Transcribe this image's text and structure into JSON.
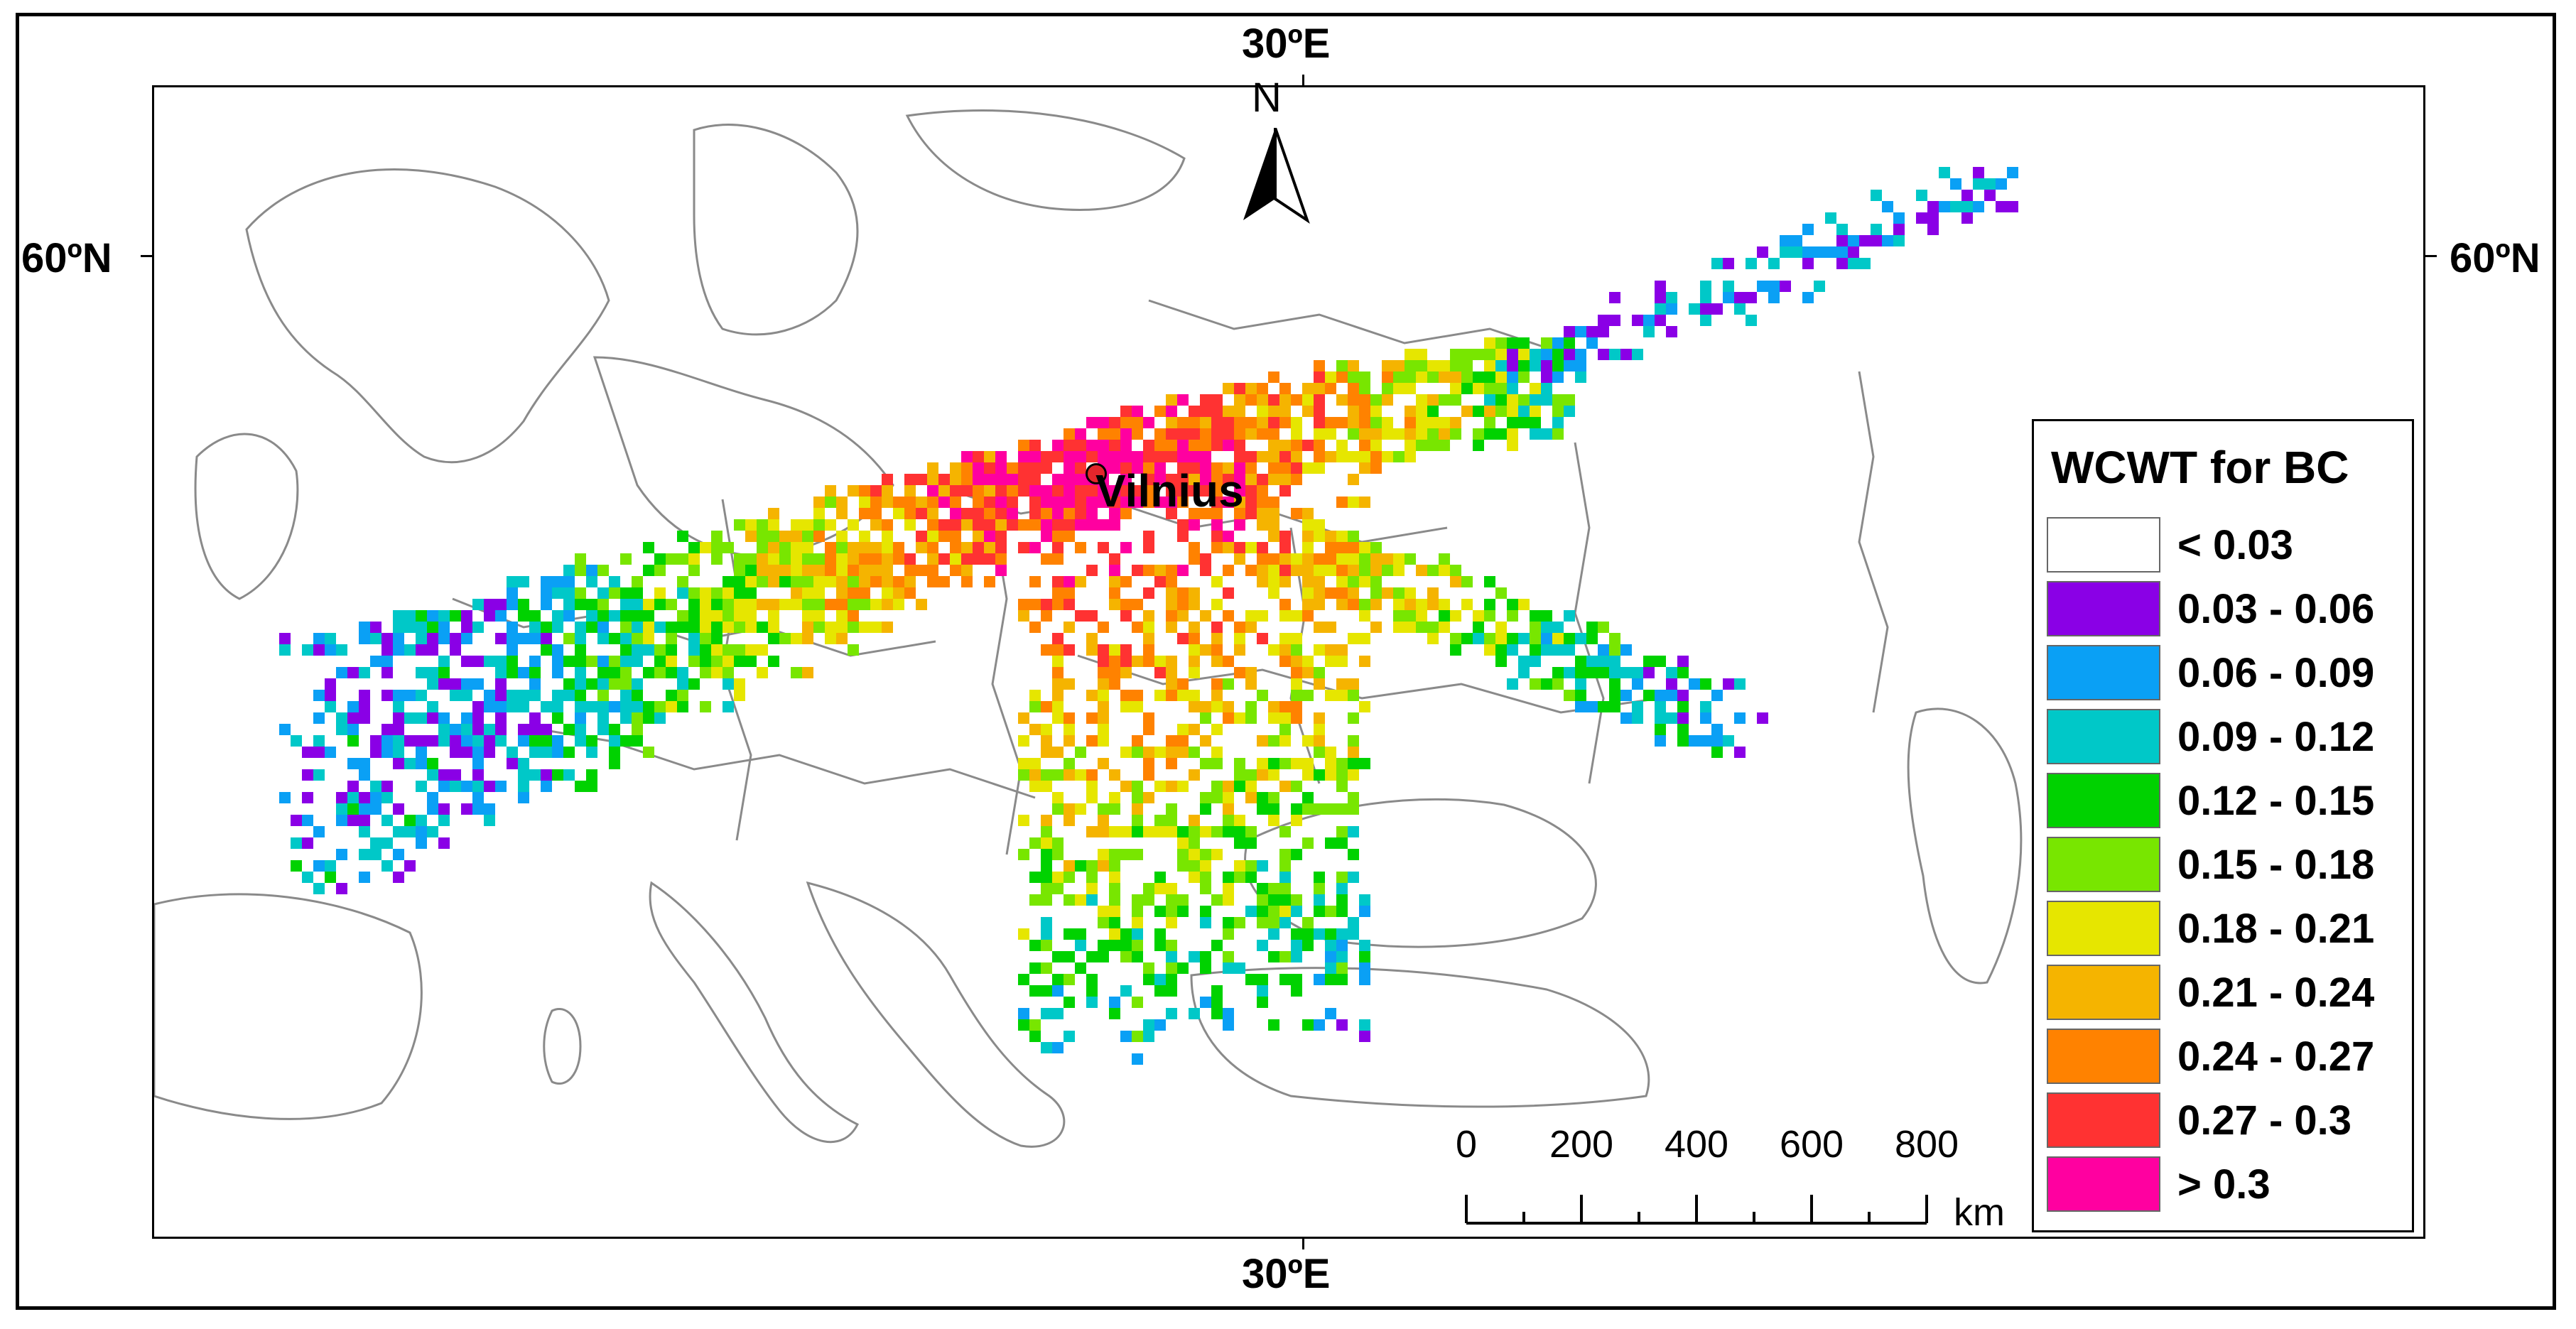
{
  "map": {
    "graticule": {
      "lon_top": "30ºE",
      "lon_bottom": "30ºE",
      "lat_left": "60ºN",
      "lat_right": "60ºN"
    },
    "north_arrow": {
      "label": "N"
    },
    "city": {
      "name": "Vilnius",
      "marker_color": "#e3262b"
    },
    "scalebar": {
      "ticks": [
        "0",
        "200",
        "400",
        "600",
        "800"
      ],
      "unit": "km"
    },
    "country_border_color": "#8a8a8a"
  },
  "legend": {
    "title": "WCWT for BC",
    "classes": [
      {
        "label": "< 0.03",
        "color": "#ffffff"
      },
      {
        "label": "0.03 - 0.06",
        "color": "#8a00e6"
      },
      {
        "label": "0.06 - 0.09",
        "color": "#0aa0f5"
      },
      {
        "label": "0.09 - 0.12",
        "color": "#00c8c8"
      },
      {
        "label": "0.12 - 0.15",
        "color": "#00d200"
      },
      {
        "label": "0.15 - 0.18",
        "color": "#78e600"
      },
      {
        "label": "0.18 - 0.21",
        "color": "#e6e600"
      },
      {
        "label": "0.21 - 0.24",
        "color": "#f5b400"
      },
      {
        "label": "0.24 - 0.27",
        "color": "#ff8200"
      },
      {
        "label": "0.27 - 0.3",
        "color": "#ff3232"
      },
      {
        "label": "> 0.3",
        "color": "#ff00a0"
      }
    ]
  }
}
